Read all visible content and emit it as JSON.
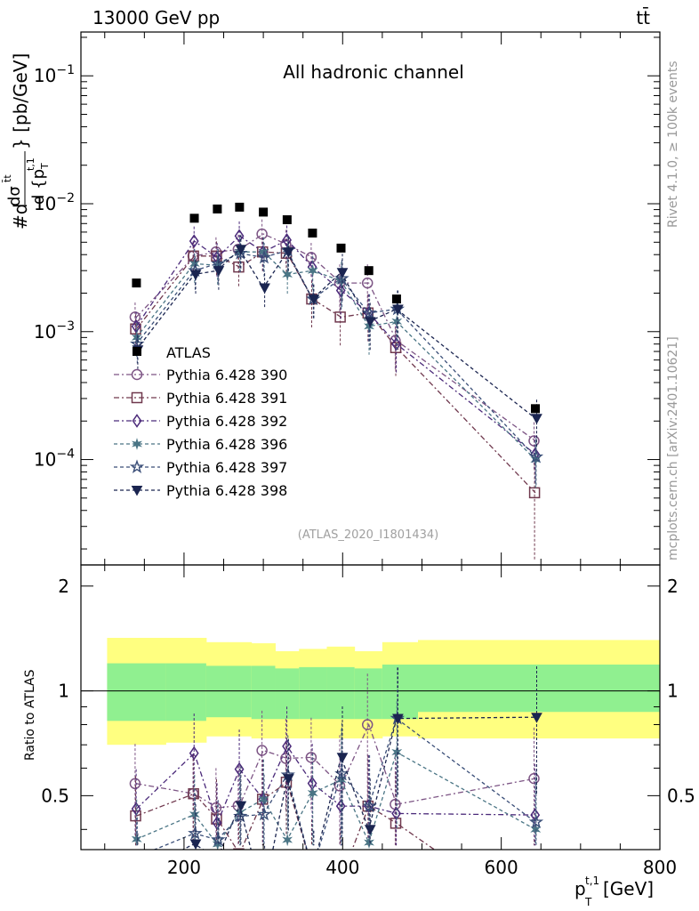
{
  "header": {
    "left": "13000 GeV pp",
    "right": "tt̄"
  },
  "side_labels": {
    "rivet": "Rivet 4.1.0, ≥ 100k events",
    "mcplots": "mcplots.cern.ch [arXiv:2401.10621]"
  },
  "chart_data": {
    "type": "scatter",
    "title": "All hadronic channel",
    "analysis_tag": "(ATLAS_2020_I1801434)",
    "ylabel_main": "#d dσ^{t̄t} / d {p_T^{t,1}} [pb/GeV]",
    "ylabel_ratio": "Ratio to ATLAS",
    "xlabel": "p_T^{t,1} [GeV]",
    "x_range": [
      70,
      800
    ],
    "y_range_main": [
      1.5e-05,
      0.22
    ],
    "y_range_ratio": [
      0.35,
      2.3
    ],
    "x_ticks": [
      "200",
      "400",
      "600",
      "800"
    ],
    "y_ticks_main": [
      "10^{-4}",
      "10^{-3}",
      "10^{-2}",
      "10^{-1}"
    ],
    "y_ticks_ratio": [
      "0.5",
      "1",
      "2"
    ],
    "legend_position": "lower-left",
    "x": [
      140,
      213,
      242,
      270,
      300,
      330,
      362,
      398,
      433,
      468,
      643
    ],
    "bin_edges": [
      103,
      177,
      228,
      255,
      285,
      315,
      345,
      380,
      415,
      450,
      495,
      800
    ],
    "data": {
      "name": "ATLAS",
      "color": "#000000",
      "values": [
        0.0024,
        0.0077,
        0.0091,
        0.0094,
        0.0086,
        0.0075,
        0.0059,
        0.0045,
        0.003,
        0.0018,
        0.00025
      ],
      "band_inner": [
        [
          0.82,
          1.2
        ],
        [
          0.82,
          1.2
        ],
        [
          0.84,
          1.18
        ],
        [
          0.84,
          1.18
        ],
        [
          0.83,
          1.18
        ],
        [
          0.83,
          1.16
        ],
        [
          0.83,
          1.17
        ],
        [
          0.83,
          1.17
        ],
        [
          0.83,
          1.16
        ],
        [
          0.83,
          1.19
        ],
        [
          0.87,
          1.19
        ]
      ],
      "band_outer": [
        [
          0.7,
          1.42
        ],
        [
          0.71,
          1.42
        ],
        [
          0.74,
          1.38
        ],
        [
          0.74,
          1.38
        ],
        [
          0.73,
          1.37
        ],
        [
          0.73,
          1.3
        ],
        [
          0.73,
          1.32
        ],
        [
          0.73,
          1.34
        ],
        [
          0.73,
          1.3
        ],
        [
          0.74,
          1.38
        ],
        [
          0.73,
          1.4
        ]
      ]
    },
    "series": [
      {
        "name": "Pythia 6.428 390",
        "color": "#7d5585",
        "marker": "circle",
        "dash": "6 3 2 3",
        "values": [
          0.0013,
          0.0039,
          0.0042,
          0.0044,
          0.0058,
          0.0048,
          0.0038,
          0.0024,
          0.0024,
          0.00085,
          0.00014
        ],
        "errors": [
          0.3,
          0.3,
          0.3,
          0.3,
          0.3,
          0.3,
          0.3,
          0.4,
          0.4,
          0.4,
          0.4
        ]
      },
      {
        "name": "Pythia 6.428 391",
        "color": "#70394e",
        "marker": "square",
        "dash": "6 3 2 3",
        "values": [
          0.00105,
          0.0039,
          0.0039,
          0.0032,
          0.0042,
          0.0041,
          0.0018,
          0.0013,
          0.0014,
          0.00075,
          5.5e-05
        ],
        "errors": [
          0.3,
          0.3,
          0.3,
          0.3,
          0.3,
          0.3,
          0.4,
          0.4,
          0.4,
          0.4,
          0.7
        ]
      },
      {
        "name": "Pythia 6.428 392",
        "color": "#4b2a7a",
        "marker": "diamond",
        "dash": "6 3 2 3",
        "values": [
          0.0011,
          0.0051,
          0.0038,
          0.0056,
          0.0042,
          0.0052,
          0.0032,
          0.0021,
          0.0014,
          0.0008,
          0.00011
        ],
        "errors": [
          0.3,
          0.3,
          0.3,
          0.3,
          0.3,
          0.3,
          0.3,
          0.4,
          0.4,
          0.4,
          0.4
        ]
      },
      {
        "name": "Pythia 6.428 396",
        "color": "#4a7585",
        "marker": "star6",
        "dash": "4 3",
        "values": [
          0.0009,
          0.0034,
          0.0033,
          0.0042,
          0.0042,
          0.0028,
          0.003,
          0.0025,
          0.0011,
          0.0012,
          0.0001
        ],
        "errors": [
          0.3,
          0.3,
          0.3,
          0.3,
          0.3,
          0.3,
          0.3,
          0.4,
          0.4,
          0.4,
          0.4
        ]
      },
      {
        "name": "Pythia 6.428 397",
        "color": "#3a4e78",
        "marker": "star5",
        "dash": "4 3",
        "values": [
          0.0008,
          0.003,
          0.0034,
          0.0041,
          0.0038,
          0.0043,
          0.0018,
          0.0026,
          0.0014,
          0.0015,
          0.000105
        ],
        "errors": [
          0.3,
          0.3,
          0.3,
          0.3,
          0.3,
          0.3,
          0.3,
          0.4,
          0.4,
          0.4,
          0.4
        ]
      },
      {
        "name": "Pythia 6.428 398",
        "color": "#1b2550",
        "marker": "tri-down",
        "dash": "4 3",
        "values": [
          0.00072,
          0.0028,
          0.003,
          0.0044,
          0.0022,
          0.0042,
          0.0018,
          0.0029,
          0.0012,
          0.0015,
          0.00021
        ],
        "errors": [
          0.3,
          0.3,
          0.3,
          0.3,
          0.3,
          0.3,
          0.3,
          0.4,
          0.4,
          0.4,
          0.4
        ]
      }
    ]
  }
}
